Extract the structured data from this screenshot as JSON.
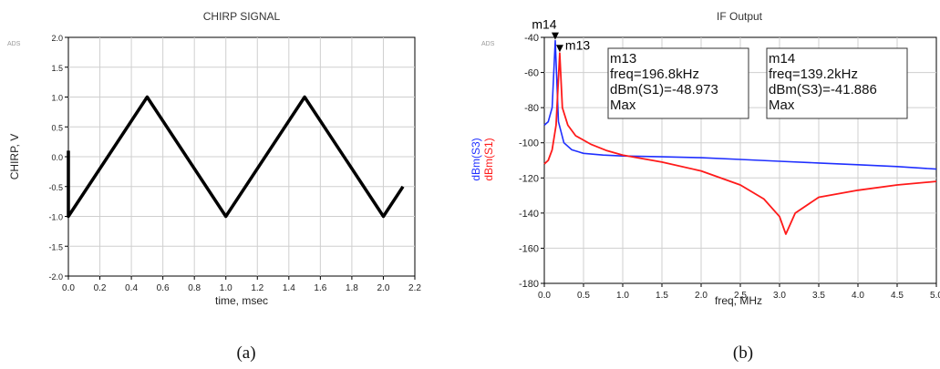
{
  "chart_data": [
    {
      "type": "line",
      "title": "CHIRP SIGNAL",
      "watermark": "ADS",
      "xlabel": "time, msec",
      "ylabel": "CHIRP, V",
      "xlim": [
        0.0,
        2.2
      ],
      "ylim": [
        -2.0,
        2.0
      ],
      "xticks": [
        "0.0",
        "0.2",
        "0.4",
        "0.6",
        "0.8",
        "1.0",
        "1.2",
        "1.4",
        "1.6",
        "1.8",
        "2.0",
        "2.2"
      ],
      "yticks": [
        "-2.0",
        "-1.5",
        "-1.0",
        "-0.5",
        "0.0",
        "0.5",
        "1.0",
        "1.5",
        "2.0"
      ],
      "grid": true,
      "color": "#000000",
      "x": [
        0.0,
        0.0,
        0.5,
        1.0,
        1.5,
        2.0,
        2.125
      ],
      "y": [
        0.1,
        -1.0,
        1.0,
        -1.0,
        1.0,
        -1.0,
        -0.5
      ],
      "caption": "(a)"
    },
    {
      "type": "line",
      "title": "IF Output",
      "watermark": "ADS",
      "xlabel": "freq, MHz",
      "ylabels": [
        "dBm(S3)",
        "dBm(S1)"
      ],
      "xlim": [
        0.0,
        5.0
      ],
      "ylim": [
        -180,
        -40
      ],
      "xticks": [
        "0.0",
        "0.5",
        "1.0",
        "1.5",
        "2.0",
        "2.5",
        "3.0",
        "3.5",
        "4.0",
        "4.5",
        "5.0"
      ],
      "yticks": [
        "-180",
        "-160",
        "-140",
        "-120",
        "-100",
        "-80",
        "-60",
        "-40"
      ],
      "grid": true,
      "series": [
        {
          "name": "dBm(S3)",
          "color": "#1f2fff",
          "x": [
            0.0,
            0.05,
            0.1,
            0.139,
            0.18,
            0.25,
            0.35,
            0.5,
            0.75,
            1.0,
            1.5,
            2.0,
            2.5,
            3.0,
            3.5,
            4.0,
            4.5,
            5.0
          ],
          "y": [
            -90,
            -88,
            -80,
            -41.886,
            -88,
            -100,
            -104,
            -106,
            -107,
            -107.5,
            -108,
            -108.5,
            -109.5,
            -110.5,
            -111.5,
            -112.5,
            -113.5,
            -115
          ]
        },
        {
          "name": "dBm(S1)",
          "color": "#ff1a1a",
          "x": [
            0.0,
            0.05,
            0.1,
            0.15,
            0.1968,
            0.23,
            0.3,
            0.4,
            0.6,
            0.8,
            1.0,
            1.5,
            2.0,
            2.5,
            2.8,
            3.0,
            3.08,
            3.2,
            3.5,
            4.0,
            4.5,
            5.0
          ],
          "y": [
            -112,
            -110,
            -104,
            -90,
            -48.973,
            -80,
            -90,
            -96,
            -101,
            -104.5,
            -107,
            -111,
            -116,
            -124,
            -132,
            -142,
            -152,
            -140,
            -131,
            -127,
            -124,
            -122
          ]
        }
      ],
      "markers": [
        {
          "id": "m14",
          "x": 0.139,
          "y": -41.886
        },
        {
          "id": "m13",
          "x": 0.1968,
          "y": -48.973
        }
      ],
      "marker_boxes": [
        {
          "lines": [
            "m13",
            "freq=196.8kHz",
            "dBm(S1)=-48.973",
            "Max"
          ]
        },
        {
          "lines": [
            "m14",
            "freq=139.2kHz",
            "dBm(S3)=-41.886",
            "Max"
          ]
        }
      ],
      "caption": "(b)"
    }
  ]
}
